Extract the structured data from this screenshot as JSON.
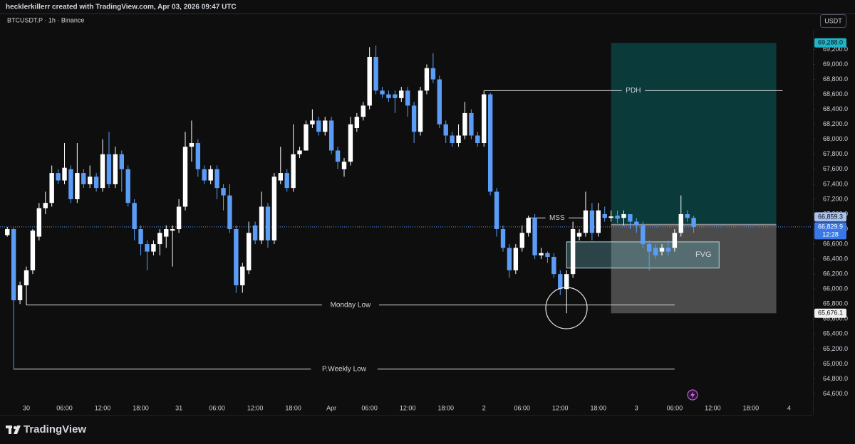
{
  "chart_data": {
    "type": "candlestick",
    "header": "hecklerkillerr created with TradingView.com, Apr 03, 2026 09:47 UTC",
    "title": "BTCUSDT.P · 1h · Binance",
    "currency": "USDT",
    "brand": "TradingView",
    "up_color": "#ffffff",
    "down_color": "#5b9cf6",
    "categories": [
      null,
      null,
      null,
      "30",
      null,
      null,
      null,
      null,
      null,
      "06:00",
      null,
      null,
      null,
      null,
      null,
      "12:00",
      null,
      null,
      null,
      null,
      null,
      "18:00",
      null,
      null,
      null,
      null,
      null,
      "31",
      null,
      null,
      null,
      null,
      null,
      "06:00",
      null,
      null,
      null,
      null,
      null,
      "12:00",
      null,
      null,
      null,
      null,
      null,
      "18:00",
      null,
      null,
      null,
      null,
      null,
      "Apr",
      null,
      null,
      null,
      null,
      null,
      "06:00",
      null,
      null,
      null,
      null,
      null,
      "12:00",
      null,
      null,
      null,
      null,
      null,
      "18:00",
      null,
      null,
      null,
      null,
      null,
      "2",
      null,
      null,
      null,
      null,
      null,
      "06:00",
      null,
      null,
      null,
      null,
      null,
      "12:00",
      null,
      null,
      null,
      null,
      null,
      "18:00",
      null,
      null,
      null,
      null,
      null,
      "3",
      null,
      null,
      null,
      null,
      null,
      "06:00",
      null,
      null,
      null,
      null,
      null,
      "12:00",
      null,
      null,
      null,
      null,
      null,
      "18:00",
      null,
      null,
      null,
      null,
      null,
      "4"
    ],
    "open": [
      66720,
      66800,
      65850,
      66050,
      66250,
      66700,
      67080,
      67150,
      67550,
      67450,
      67600,
      67200,
      67550,
      67400,
      67500,
      67350,
      67800,
      67400,
      67800,
      67600,
      67150,
      66800,
      66600,
      66500,
      66600,
      66700,
      66780,
      66800,
      67100,
      67900,
      67950,
      67600,
      67450,
      67600,
      67350,
      67250,
      66800,
      66050,
      66250,
      66850,
      66650,
      67100,
      66650,
      67450,
      67550,
      67350,
      67800,
      67850,
      68200,
      68250,
      68100,
      68250,
      67850,
      67600,
      67700,
      68150,
      68300,
      68450,
      69100,
      68650,
      68600,
      68600,
      68550,
      68650,
      68450,
      68100,
      68650,
      68950,
      68800,
      68200,
      68050,
      67950,
      68050,
      68350,
      68050,
      67950,
      68600,
      67300,
      66800,
      66550,
      66250,
      66550,
      66750,
      66950,
      66450,
      66480,
      66430,
      66200,
      66000,
      66200,
      66700,
      66750,
      67050,
      66750,
      67000,
      66950,
      66980,
      66950,
      67000,
      66900,
      66850,
      66600,
      66550,
      66500,
      66550,
      66550,
      66750,
      67000,
      66950,
      null,
      null,
      null,
      null,
      null,
      null,
      null,
      null,
      null,
      null,
      null,
      null,
      null,
      null,
      null
    ],
    "high": [
      66830,
      66820,
      66100,
      66300,
      66800,
      67150,
      67300,
      67650,
      67600,
      67950,
      67650,
      67950,
      67600,
      67650,
      67550,
      68000,
      68100,
      67900,
      67850,
      67650,
      67200,
      66850,
      66650,
      66650,
      66800,
      66850,
      66850,
      67200,
      68100,
      68250,
      68000,
      67650,
      67650,
      67650,
      67400,
      67400,
      66850,
      66350,
      66900,
      66900,
      67300,
      67150,
      67550,
      67900,
      67600,
      68200,
      67900,
      68250,
      68400,
      68300,
      68300,
      68300,
      67900,
      67750,
      68300,
      68350,
      68500,
      69230,
      69250,
      68700,
      68650,
      68650,
      68700,
      68700,
      68500,
      68700,
      69000,
      69150,
      68850,
      68250,
      68100,
      68200,
      68500,
      68400,
      68100,
      68650,
      68620,
      67350,
      66850,
      66600,
      66600,
      66850,
      66980,
      67000,
      66550,
      66500,
      66480,
      66250,
      66250,
      66900,
      66800,
      67300,
      67150,
      67150,
      67100,
      67050,
      67050,
      67050,
      67000,
      66950,
      66900,
      66650,
      66600,
      66600,
      66650,
      66800,
      67250,
      67050,
      66980,
      null,
      null,
      null,
      null,
      null,
      null,
      null,
      null,
      null,
      null,
      null,
      null,
      null,
      null,
      null
    ],
    "low": [
      66700,
      64930,
      65800,
      65787,
      66200,
      66650,
      67000,
      67100,
      67400,
      67400,
      67150,
      67150,
      67350,
      67350,
      67300,
      67300,
      67350,
      67350,
      67300,
      67100,
      66650,
      66450,
      66250,
      66450,
      66450,
      66550,
      66300,
      66750,
      67050,
      67700,
      67500,
      67400,
      67400,
      67200,
      67050,
      66750,
      65950,
      65950,
      66200,
      66600,
      66600,
      66550,
      66600,
      67400,
      67300,
      67300,
      67750,
      67850,
      68150,
      68050,
      68050,
      67800,
      67600,
      67500,
      67650,
      68100,
      68250,
      68400,
      68600,
      68550,
      68500,
      68350,
      68500,
      68300,
      67950,
      68050,
      68600,
      68750,
      68150,
      67950,
      67900,
      67900,
      68000,
      68000,
      67900,
      67900,
      67250,
      66700,
      66500,
      66150,
      66200,
      66500,
      66700,
      66400,
      66400,
      66350,
      66150,
      65920,
      65676.1,
      66150,
      66650,
      66700,
      66650,
      66700,
      66900,
      66900,
      66880,
      66850,
      66800,
      66750,
      66550,
      66250,
      66400,
      66450,
      66450,
      66500,
      66700,
      66900,
      66750,
      null,
      null,
      null,
      null,
      null,
      null,
      null,
      null,
      null,
      null,
      null,
      null,
      null,
      null,
      null
    ],
    "close": [
      66800,
      65850,
      66050,
      66250,
      66780,
      67080,
      67150,
      67550,
      67450,
      67620,
      67200,
      67550,
      67400,
      67500,
      67350,
      67800,
      67400,
      67800,
      67600,
      67150,
      66800,
      66600,
      66500,
      66600,
      66750,
      66800,
      66800,
      67100,
      67900,
      67950,
      67600,
      67450,
      67600,
      67350,
      67250,
      66800,
      66050,
      66300,
      66750,
      66650,
      67100,
      66650,
      67500,
      67550,
      67350,
      67800,
      67850,
      68200,
      68250,
      68100,
      68250,
      67850,
      67700,
      67700,
      68200,
      68300,
      68450,
      69100,
      68650,
      68600,
      68550,
      68550,
      68650,
      68450,
      68100,
      68650,
      68950,
      68800,
      68200,
      68050,
      67950,
      68050,
      68350,
      68050,
      67950,
      68600,
      67300,
      66800,
      66550,
      66250,
      66550,
      66750,
      66950,
      66450,
      66480,
      66430,
      66200,
      66000,
      66200,
      66800,
      66750,
      67050,
      66750,
      67050,
      66950,
      66970,
      66940,
      67000,
      66900,
      66850,
      66600,
      66500,
      66450,
      66550,
      66500,
      66750,
      67000,
      66950,
      66829.9,
      null,
      null,
      null,
      null,
      null,
      null,
      null,
      null,
      null,
      null,
      null,
      null,
      null,
      null,
      null
    ],
    "ylim": [
      64320,
      69480
    ],
    "yticks": [
      {
        "value": 64600,
        "label": "64,600.0"
      },
      {
        "value": 64800,
        "label": "64,800.0"
      },
      {
        "value": 65000,
        "label": "65,000.0"
      },
      {
        "value": 65200,
        "label": "65,200.0"
      },
      {
        "value": 65400,
        "label": "65,400.0"
      },
      {
        "value": 65600,
        "label": "65,600.0"
      },
      {
        "value": 65800,
        "label": "65,800.0"
      },
      {
        "value": 66000,
        "label": "66,000.0"
      },
      {
        "value": 66200,
        "label": "66,200.0"
      },
      {
        "value": 66400,
        "label": "66,400.0"
      },
      {
        "value": 66600,
        "label": "66,600.0"
      },
      {
        "value": 66800,
        "label": "66,800.0"
      },
      {
        "value": 67000,
        "label": "67,000.0"
      },
      {
        "value": 67200,
        "label": "67,200.0"
      },
      {
        "value": 67400,
        "label": "67,400.0"
      },
      {
        "value": 67600,
        "label": "67,600.0"
      },
      {
        "value": 67800,
        "label": "67,800.0"
      },
      {
        "value": 68000,
        "label": "68,000.0"
      },
      {
        "value": 68200,
        "label": "68,200.0"
      },
      {
        "value": 68400,
        "label": "68,400.0"
      },
      {
        "value": 68600,
        "label": "68,600.0"
      },
      {
        "value": 68800,
        "label": "68,800.0"
      },
      {
        "value": 69000,
        "label": "69,000.0"
      },
      {
        "value": 69200,
        "label": "69,200.0"
      }
    ],
    "levels": [
      {
        "label": "PDH",
        "value": 68650,
        "start": 75,
        "end": 122
      },
      {
        "label": "MSS",
        "value": 66950,
        "start": 82,
        "end": 91
      },
      {
        "label": "Monday Low",
        "value": 65787,
        "start": 3,
        "end": 105
      },
      {
        "label": "P.Weekly Low",
        "value": 64930,
        "start": 1,
        "end": 105
      }
    ],
    "zone": {
      "label": "FVG",
      "top": 66630,
      "bottom": 66280,
      "start": 88,
      "end": 112
    },
    "position": {
      "start": 95,
      "end": 121,
      "target": 69288.0,
      "target_label": "69,288.0",
      "entry": 66859.3,
      "entry_label": "66,859.3",
      "stop": 65676.1,
      "stop_label": "65,676.1"
    },
    "last_price": {
      "value": 66829.9,
      "label": "66,829.9",
      "countdown": "12:28"
    }
  }
}
